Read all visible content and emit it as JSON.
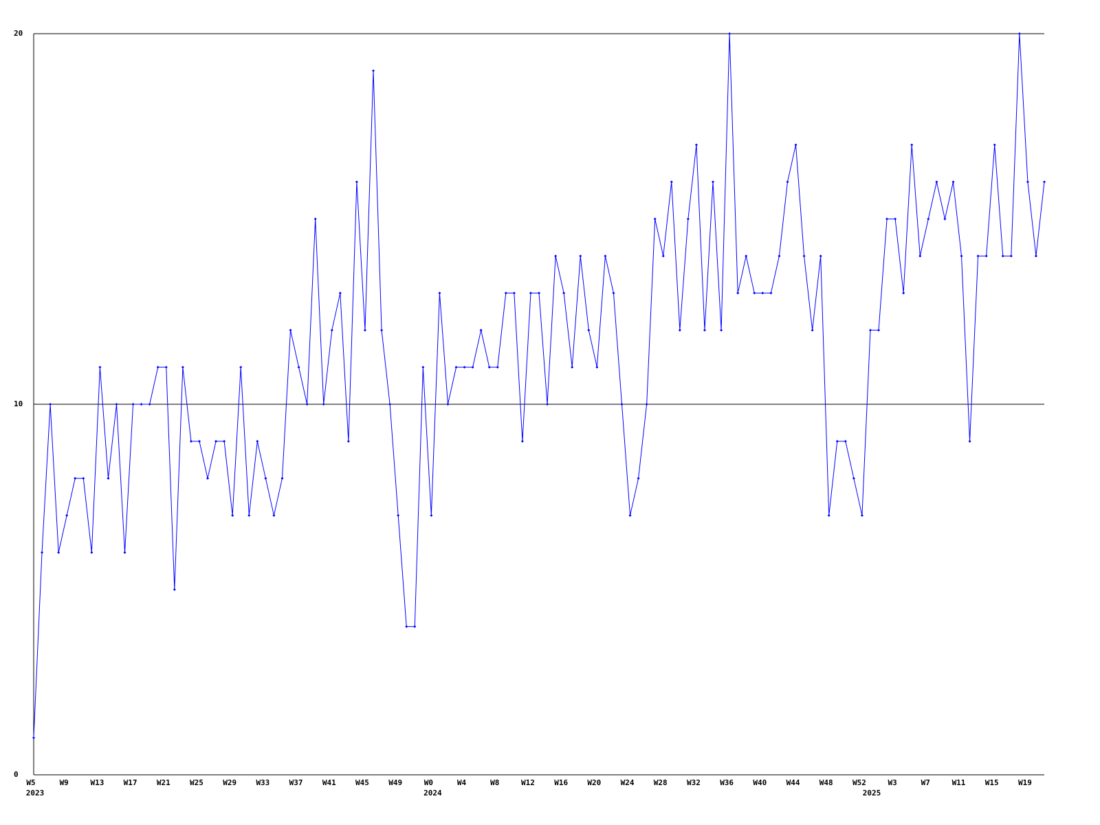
{
  "chart_data": {
    "type": "line",
    "categories": [
      "W5",
      null,
      null,
      null,
      "W9",
      null,
      null,
      null,
      "W13",
      null,
      null,
      null,
      "W17",
      null,
      null,
      null,
      "W21",
      null,
      null,
      null,
      "W25",
      null,
      null,
      null,
      "W29",
      null,
      null,
      null,
      "W33",
      null,
      null,
      null,
      "W37",
      null,
      null,
      null,
      "W41",
      null,
      null,
      null,
      "W45",
      null,
      null,
      null,
      "W49",
      null,
      null,
      null,
      "W0",
      null,
      null,
      null,
      "W4",
      null,
      null,
      null,
      "W8",
      null,
      null,
      null,
      "W12",
      null,
      null,
      null,
      "W16",
      null,
      null,
      null,
      "W20",
      null,
      null,
      null,
      "W24",
      null,
      null,
      null,
      "W28",
      null,
      null,
      null,
      "W32",
      null,
      null,
      null,
      "W36",
      null,
      null,
      null,
      "W40",
      null,
      null,
      null,
      "W44",
      null,
      null,
      null,
      "W48",
      null,
      null,
      null,
      "W52",
      null,
      null,
      null,
      "W3",
      null,
      null,
      null,
      "W7",
      null,
      null,
      null,
      "W11",
      null,
      null,
      null,
      "W15",
      null,
      null,
      null,
      "W19",
      null,
      null
    ],
    "x_groups": [
      {
        "label": "2023",
        "index": 0
      },
      {
        "label": "2024",
        "index": 48
      },
      {
        "label": "2025",
        "index": 101
      }
    ],
    "series": [
      {
        "color": "#0000ff",
        "values": [
          1,
          6,
          10,
          6,
          7,
          8,
          8,
          6,
          11,
          8,
          10,
          6,
          10,
          10,
          10,
          11,
          11,
          5,
          11,
          9,
          9,
          8,
          9,
          9,
          7,
          11,
          7,
          9,
          8,
          7,
          8,
          12,
          11,
          10,
          15,
          10,
          12,
          13,
          9,
          16,
          12,
          19,
          12,
          10,
          7,
          4,
          4,
          11,
          7,
          13,
          10,
          11,
          11,
          11,
          12,
          11,
          11,
          13,
          13,
          9,
          13,
          13,
          10,
          14,
          13,
          11,
          14,
          12,
          11,
          14,
          13,
          10,
          7,
          8,
          10,
          15,
          14,
          16,
          12,
          15,
          17,
          12,
          16,
          12,
          20,
          13,
          14,
          13,
          13,
          13,
          14,
          16,
          17,
          14,
          12,
          14,
          7,
          9,
          9,
          8,
          7,
          12,
          12,
          15,
          15,
          13,
          17,
          14,
          15,
          16,
          15,
          16,
          14,
          9,
          14,
          14,
          17,
          14,
          14,
          20,
          16,
          14,
          16
        ]
      }
    ],
    "ylim": [
      0,
      20
    ],
    "yticks": [
      0,
      10,
      20
    ],
    "grid": true
  }
}
